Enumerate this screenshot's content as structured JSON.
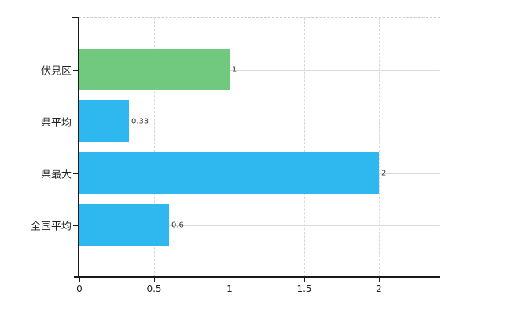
{
  "chart_data": {
    "type": "bar",
    "orientation": "horizontal",
    "title": "",
    "categories": [
      "伏見区",
      "県平均",
      "県最大",
      "全国平均"
    ],
    "values": [
      1,
      0.33,
      2,
      0.6
    ],
    "value_labels": [
      "1",
      "0.33",
      "2",
      "0.6"
    ],
    "bar_colors": [
      "#70c97f",
      "#2fb8f0",
      "#2fb8f0",
      "#2fb8f0"
    ],
    "x_tick_values": [
      0,
      0.5,
      1,
      1.5,
      2
    ],
    "x_tick_labels": [
      "0",
      "0.5",
      "1",
      "1.5",
      "2"
    ],
    "xlim": [
      0,
      2.41
    ],
    "xlabel": "",
    "ylabel": "",
    "grid": true,
    "legend_position": "none"
  },
  "style": {
    "background": "#ffffff",
    "axis_color": "#1a1a1a",
    "grid_vertical_color": "#d8d8d8",
    "grid_horizontal_color": "#d6ded6",
    "grid_top_color": "#cccccc",
    "category_text_color": "#222222",
    "tick_text_color": "#222222",
    "value_text_color": "#3a3a3a",
    "accent_green": "#70c97f",
    "accent_blue": "#2fb8f0"
  }
}
